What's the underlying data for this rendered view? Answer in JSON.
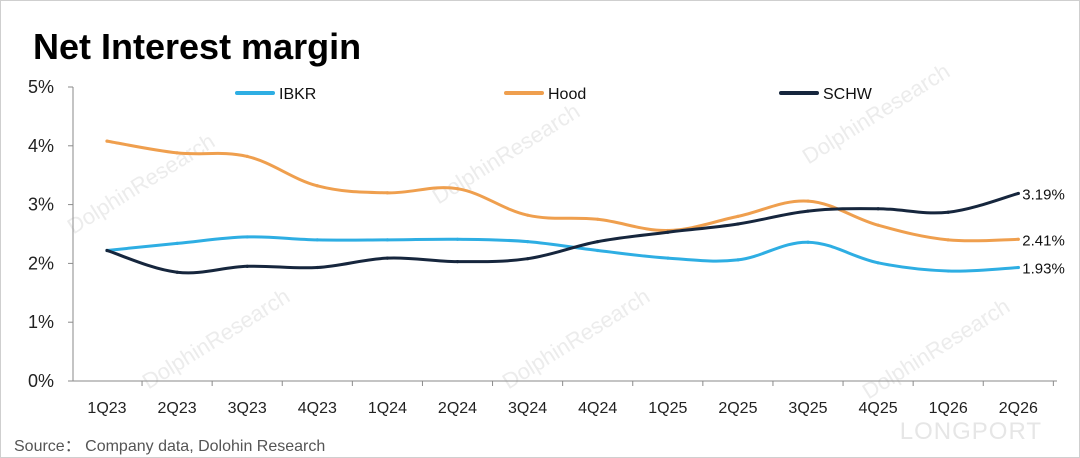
{
  "chart_data": {
    "type": "line",
    "title": "Net Interest margin",
    "categories": [
      "1Q23",
      "2Q23",
      "3Q23",
      "4Q23",
      "1Q24",
      "2Q24",
      "3Q24",
      "4Q24",
      "1Q25",
      "2Q25",
      "3Q25",
      "4Q25",
      "1Q26",
      "2Q26"
    ],
    "y_ticks": [
      "0%",
      "1%",
      "2%",
      "3%",
      "4%",
      "5%"
    ],
    "ylim": [
      0,
      5
    ],
    "grid": false,
    "legend_position": "top",
    "series": [
      {
        "name": "IBKR",
        "color": "#2eaee3",
        "values": [
          2.22,
          2.34,
          2.45,
          2.4,
          2.4,
          2.41,
          2.37,
          2.22,
          2.09,
          2.06,
          2.36,
          2.01,
          1.87,
          1.93
        ],
        "end_label": "1.93%"
      },
      {
        "name": "Hood",
        "color": "#ef9f4e",
        "values": [
          4.08,
          3.88,
          3.82,
          3.32,
          3.2,
          3.27,
          2.82,
          2.75,
          2.56,
          2.8,
          3.06,
          2.65,
          2.4,
          2.41
        ],
        "end_label": "2.41%"
      },
      {
        "name": "SCHW",
        "color": "#16263d",
        "values": [
          2.22,
          1.85,
          1.95,
          1.93,
          2.09,
          2.03,
          2.08,
          2.37,
          2.53,
          2.67,
          2.89,
          2.93,
          2.87,
          3.19
        ],
        "end_label": "3.19%"
      }
    ]
  },
  "source": "Source： Company data,  Dolohin Research",
  "watermark": "DolphinResearch",
  "brand": "LONGPORT"
}
